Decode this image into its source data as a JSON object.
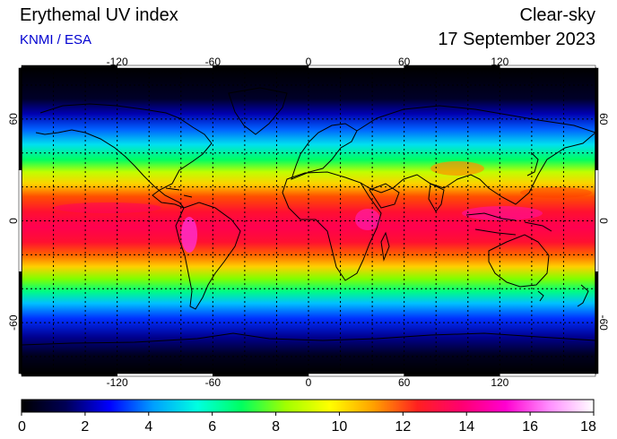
{
  "header": {
    "title": "Erythemal UV index",
    "credit": "KNMI / ESA",
    "mode": "Clear-sky",
    "date": "17 September 2023"
  },
  "map": {
    "projection": "equirectangular",
    "lon_range": [
      -180,
      180
    ],
    "lat_range": [
      -90,
      90
    ],
    "lon_ticks": [
      "-120",
      "-60",
      "0",
      "60",
      "120"
    ],
    "lat_ticks": [
      "60",
      "0",
      "-60"
    ],
    "grid": "dotted, every 20 degrees",
    "coastlines": true
  },
  "colorbar": {
    "ticks": [
      "0",
      "2",
      "4",
      "6",
      "8",
      "10",
      "12",
      "14",
      "16",
      "18"
    ],
    "range": [
      0,
      18
    ],
    "colors": [
      "#000000",
      "#000055",
      "#0000ff",
      "#00a0ff",
      "#00ffe0",
      "#00ff60",
      "#a0ff00",
      "#ffff00",
      "#ffa000",
      "#ff2020",
      "#ff0070",
      "#ff00d0",
      "#ff90ff",
      "#ffffff"
    ]
  }
}
